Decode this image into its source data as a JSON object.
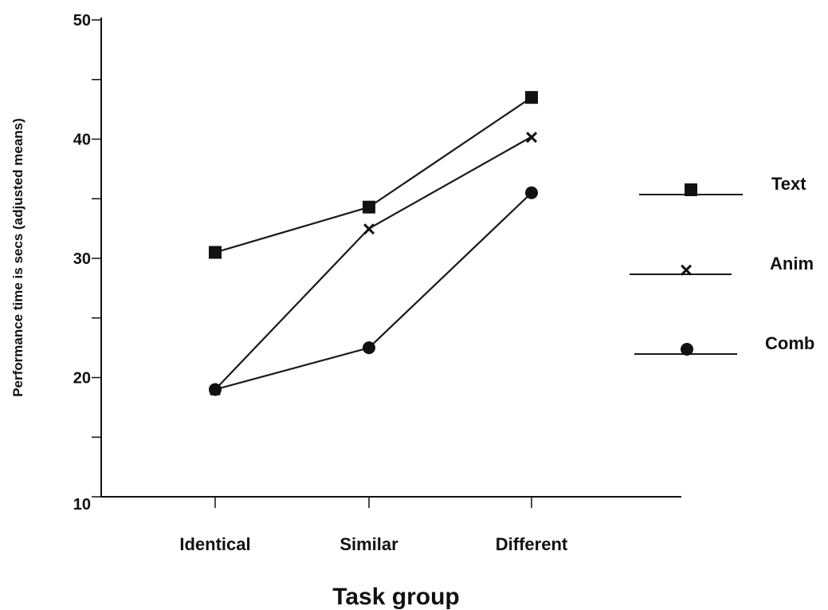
{
  "chart_data": {
    "type": "line",
    "xlabel": "Task group",
    "ylabel": "Performance time is secs (adjusted means)",
    "categories": [
      "Identical",
      "Similar",
      "Different"
    ],
    "ylim": [
      10,
      50
    ],
    "yticks": [
      10,
      15,
      20,
      25,
      30,
      35,
      40,
      45,
      50
    ],
    "ytick_labels": [
      "10",
      "",
      "20",
      "",
      "30",
      "",
      "40",
      "",
      "50"
    ],
    "grid": false,
    "legend_position": "right",
    "series": [
      {
        "name": "Text",
        "marker": "square",
        "values": [
          30.5,
          34.3,
          43.5
        ]
      },
      {
        "name": "Anim",
        "marker": "x",
        "values": [
          19.0,
          32.5,
          40.2
        ]
      },
      {
        "name": "Comb",
        "marker": "circle",
        "values": [
          19.0,
          22.5,
          35.5
        ]
      }
    ],
    "colors": {
      "line": "#1a1a1a",
      "marker": "#111111",
      "axis": "#111111"
    }
  }
}
